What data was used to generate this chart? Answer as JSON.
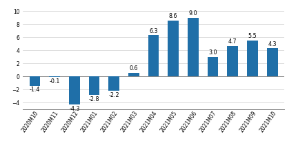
{
  "categories": [
    "2020M10",
    "2020M11",
    "2020M12",
    "2021M01",
    "2021M02",
    "2021M03",
    "2021M04",
    "2021M05",
    "2021M06",
    "2021M07",
    "2021M08",
    "2021M09",
    "2021M10"
  ],
  "values": [
    -1.4,
    -0.1,
    -4.3,
    -2.8,
    -2.2,
    0.6,
    6.3,
    8.6,
    9.0,
    3.0,
    4.7,
    5.5,
    4.3
  ],
  "bar_color": "#1F6FA8",
  "ylim": [
    -5,
    11
  ],
  "yticks": [
    -4,
    -2,
    0,
    2,
    4,
    6,
    8,
    10
  ],
  "label_fontsize": 5.8,
  "tick_fontsize": 5.5,
  "background_color": "#ffffff",
  "bar_width": 0.55
}
